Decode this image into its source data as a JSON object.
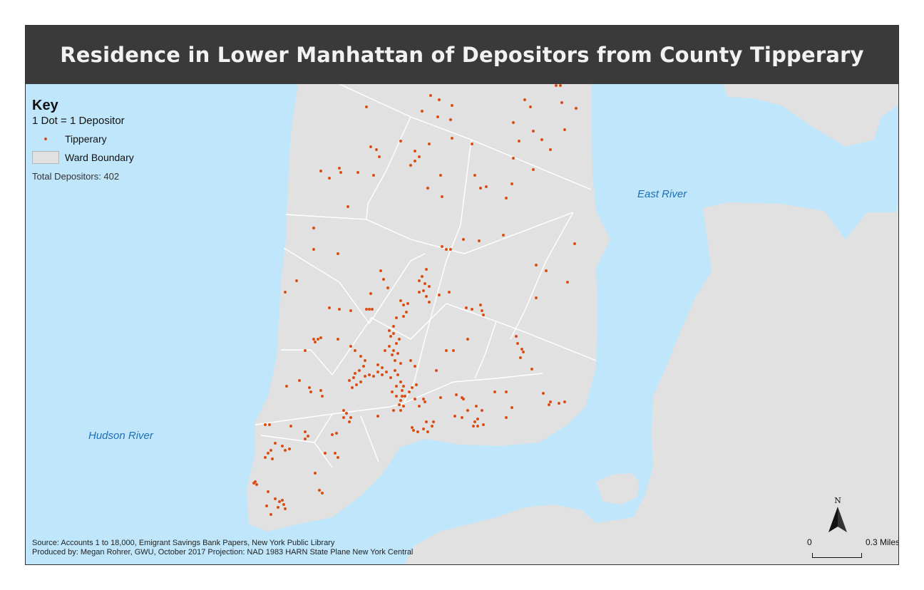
{
  "title": "Residence in Lower Manhattan of Depositors from County Tipperary",
  "legend": {
    "heading": "Key",
    "dot_note": "1 Dot = 1 Depositor",
    "items": [
      {
        "label": "Tipperary",
        "symbol": "dot",
        "color": "#d84f17"
      },
      {
        "label": "Ward Boundary",
        "symbol": "polygon",
        "color": "#e1e1e1"
      }
    ],
    "total": "Total Depositors: 402"
  },
  "water_labels": {
    "east_river": "East River",
    "hudson_river": "Hudson River"
  },
  "source": {
    "line1": "Source: Accounts 1 to 18,000, Emigrant Savings Bank Papers, New York Public Library",
    "line2": "Produced by: Megan Rohrer, GWU, October 2017 Projection: NAD 1983 HARN State Plane New York Central"
  },
  "north_arrow": {
    "label": "N",
    "icon": "north-arrow-icon"
  },
  "scale_bar": {
    "start_label": "0",
    "end_label": "0.3 Miles"
  },
  "colors": {
    "water": "#bfe6fb",
    "land": "#e1e1e1",
    "ward_line": "#ffffff",
    "dot": "#d84f17",
    "title_bar": "#3a3a3a"
  }
}
